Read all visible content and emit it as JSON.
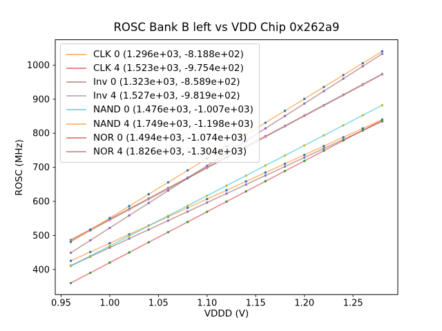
{
  "figure": {
    "title": "ROSC Bank B left vs VDD Chip 0x262a9"
  },
  "chart_data": {
    "type": "line",
    "title": "ROSC Bank B left vs VDD Chip 0x262a9",
    "xlabel": "VDDD (V)",
    "ylabel": "ROSC (MHz)",
    "xlim": [
      0.944,
      1.296
    ],
    "ylim": [
      326.2,
      1074.7
    ],
    "xticks": [
      0.95,
      1.0,
      1.05,
      1.1,
      1.15,
      1.2,
      1.25
    ],
    "xtick_labels": [
      "0.95",
      "1.00",
      "1.05",
      "1.10",
      "1.15",
      "1.20",
      "1.25"
    ],
    "yticks": [
      400,
      500,
      600,
      700,
      800,
      900,
      1000
    ],
    "ytick_labels": [
      "400",
      "500",
      "600",
      "700",
      "800",
      "900",
      "1000"
    ],
    "grid": false,
    "legend_position": "upper left",
    "x": [
      0.96,
      0.98,
      1.0,
      1.02,
      1.04,
      1.06,
      1.08,
      1.1,
      1.12,
      1.14,
      1.16,
      1.18,
      1.2,
      1.22,
      1.24,
      1.26,
      1.28
    ],
    "line_alpha": 0.55,
    "series": [
      {
        "name": "CLK 0",
        "legend_label": "CLK 0 (1.296e+03, -8.188e+02)",
        "fit_slope": 1296,
        "fit_intercept": -818.8,
        "line_color": "#ff7f0e",
        "marker_color": "#1f77b4",
        "values": [
          425.4,
          451.3,
          477.2,
          503.1,
          529.0,
          555.0,
          580.9,
          606.8,
          632.7,
          658.6,
          684.6,
          710.5,
          736.4,
          762.3,
          788.2,
          814.2,
          840.1
        ]
      },
      {
        "name": "CLK 4",
        "legend_label": "CLK 4 (1.523e+03, -9.754e+02)",
        "fit_slope": 1523,
        "fit_intercept": -975.4,
        "line_color": "#d62728",
        "marker_color": "#2ca02c",
        "values": [
          486.7,
          517.1,
          547.6,
          578.1,
          608.5,
          639.0,
          669.4,
          699.9,
          730.4,
          760.8,
          791.3,
          821.7,
          852.2,
          882.7,
          913.1,
          943.6,
          974.0
        ]
      },
      {
        "name": "Inv 0",
        "legend_label": "Inv 0 (1.323e+03, -8.589e+02)",
        "fit_slope": 1323,
        "fit_intercept": -858.9,
        "line_color": "#8c564b",
        "marker_color": "#9467bd",
        "values": [
          411.2,
          437.6,
          464.1,
          490.6,
          517.0,
          543.5,
          569.9,
          596.4,
          622.9,
          649.3,
          675.8,
          702.2,
          728.7,
          755.2,
          781.6,
          808.1,
          834.5
        ]
      },
      {
        "name": "Inv 4",
        "legend_label": "Inv 4 (1.527e+03, -9.819e+02)",
        "fit_slope": 1527,
        "fit_intercept": -981.9,
        "line_color": "#7f7f7f",
        "marker_color": "#e377c2",
        "values": [
          484.0,
          514.6,
          545.1,
          575.6,
          606.2,
          636.7,
          667.3,
          697.8,
          728.3,
          758.9,
          789.4,
          820.0,
          850.5,
          881.0,
          911.6,
          942.1,
          972.7
        ]
      },
      {
        "name": "NAND 0",
        "legend_label": "NAND 0 (1.476e+03, -1.007e+03)",
        "fit_slope": 1476,
        "fit_intercept": -1007,
        "line_color": "#17becf",
        "marker_color": "#bcbd22",
        "values": [
          410.0,
          439.5,
          469.0,
          498.5,
          528.0,
          557.6,
          587.1,
          616.6,
          646.1,
          675.6,
          705.2,
          734.7,
          764.2,
          793.7,
          823.2,
          852.8,
          882.3
        ]
      },
      {
        "name": "NAND 4",
        "legend_label": "NAND 4 (1.749e+03, -1.198e+03)",
        "fit_slope": 1749,
        "fit_intercept": -1198,
        "line_color": "#ff7f0e",
        "marker_color": "#1f77b4",
        "values": [
          481.0,
          516.0,
          551.0,
          586.0,
          621.0,
          655.9,
          690.9,
          725.9,
          760.9,
          795.9,
          830.8,
          865.8,
          900.8,
          935.8,
          970.8,
          1005.7,
          1040.7
        ]
      },
      {
        "name": "NOR 0",
        "legend_label": "NOR 0 (1.494e+03, -1.074e+03)",
        "fit_slope": 1494,
        "fit_intercept": -1074,
        "line_color": "#d62728",
        "marker_color": "#2ca02c",
        "values": [
          360.2,
          390.1,
          420.0,
          449.9,
          479.8,
          509.6,
          539.5,
          569.4,
          599.3,
          629.2,
          659.0,
          688.9,
          718.8,
          748.7,
          778.6,
          808.4,
          838.3
        ]
      },
      {
        "name": "NOR 4",
        "legend_label": "NOR 4 (1.826e+03, -1.304e+03)",
        "fit_slope": 1826,
        "fit_intercept": -1304,
        "line_color": "#8c564b",
        "marker_color": "#9467bd",
        "values": [
          449.0,
          485.5,
          522.0,
          558.5,
          595.0,
          631.6,
          668.1,
          704.6,
          741.1,
          777.6,
          814.2,
          850.7,
          887.2,
          923.7,
          960.2,
          996.8,
          1033.3
        ]
      }
    ]
  }
}
